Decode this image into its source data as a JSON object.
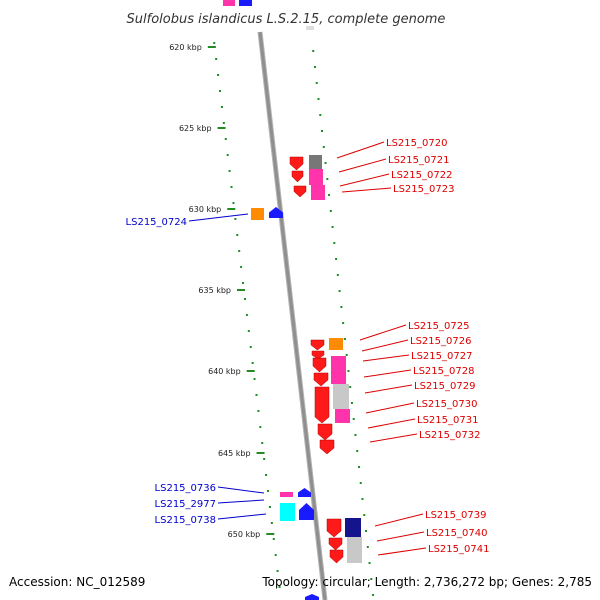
{
  "title": "Sulfolobus islandicus L.S.2.15, complete genome",
  "footer": {
    "accession": "Accession: NC_012589",
    "topology": "Topology: circular; Length: 2,736,272 bp; Genes: 2,785"
  },
  "colors": {
    "backbone": "#8f8f8f",
    "tick_dots": "#228b22",
    "label_forward": "#dd0000",
    "label_reverse": "#0000cc",
    "gene_red": "#ff1a1a",
    "gene_magenta": "#ff33aa",
    "gene_grey": "#c8c8c8",
    "gene_dark_grey": "#777777",
    "gene_orange": "#ff8c00",
    "gene_blue": "#1a1aff",
    "gene_navy": "#14148c",
    "gene_cyan": "#00ffff"
  },
  "kbp_ticks": [
    "620 kbp",
    "625 kbp",
    "630 kbp",
    "635 kbp",
    "640 kbp",
    "645 kbp",
    "650 kbp"
  ],
  "genes_right": [
    "LS215_0720",
    "LS215_0721",
    "LS215_0722",
    "LS215_0723",
    "LS215_0725",
    "LS215_0726",
    "LS215_0727",
    "LS215_0728",
    "LS215_0729",
    "LS215_0730",
    "LS215_0731",
    "LS215_0732",
    "LS215_0739",
    "LS215_0740",
    "LS215_0741"
  ],
  "genes_left": [
    "LS215_0724",
    "LS215_0736",
    "LS215_2977",
    "LS215_0738"
  ]
}
